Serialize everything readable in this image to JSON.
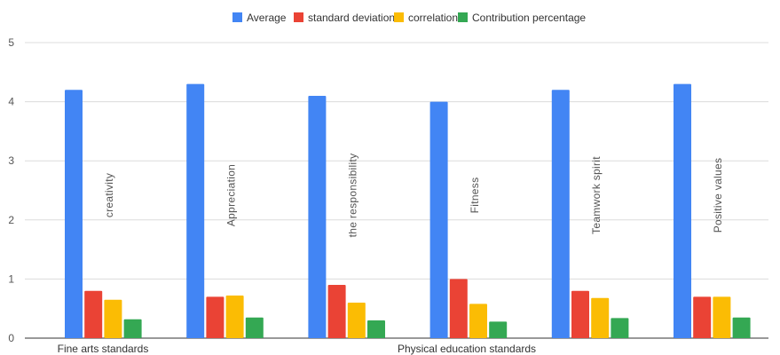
{
  "chart_data": {
    "type": "bar",
    "categories": [
      "creativity",
      "Appreciation",
      "the responsibility",
      "Fitness",
      "Teamwork spirit",
      "Positive values"
    ],
    "groups": [
      {
        "label": "Fine arts standards"
      },
      {
        "label": "Physical education standards"
      }
    ],
    "series": [
      {
        "name": "Average",
        "color": "#4285F4",
        "values": [
          4.2,
          4.3,
          4.1,
          4.0,
          4.2,
          4.3
        ]
      },
      {
        "name": "standard deviation",
        "color": "#EA4335",
        "values": [
          0.8,
          0.7,
          0.9,
          1.0,
          0.8,
          0.7
        ]
      },
      {
        "name": "correlation",
        "color": "#FBBC04",
        "values": [
          0.65,
          0.72,
          0.6,
          0.58,
          0.68,
          0.7
        ]
      },
      {
        "name": "Contribution percentage",
        "color": "#34A853",
        "values": [
          0.32,
          0.35,
          0.3,
          0.28,
          0.34,
          0.35
        ]
      }
    ],
    "ylim": [
      0,
      5
    ],
    "yticks": [
      0,
      1,
      2,
      3,
      4,
      5
    ],
    "grid": true,
    "legend": "top"
  }
}
